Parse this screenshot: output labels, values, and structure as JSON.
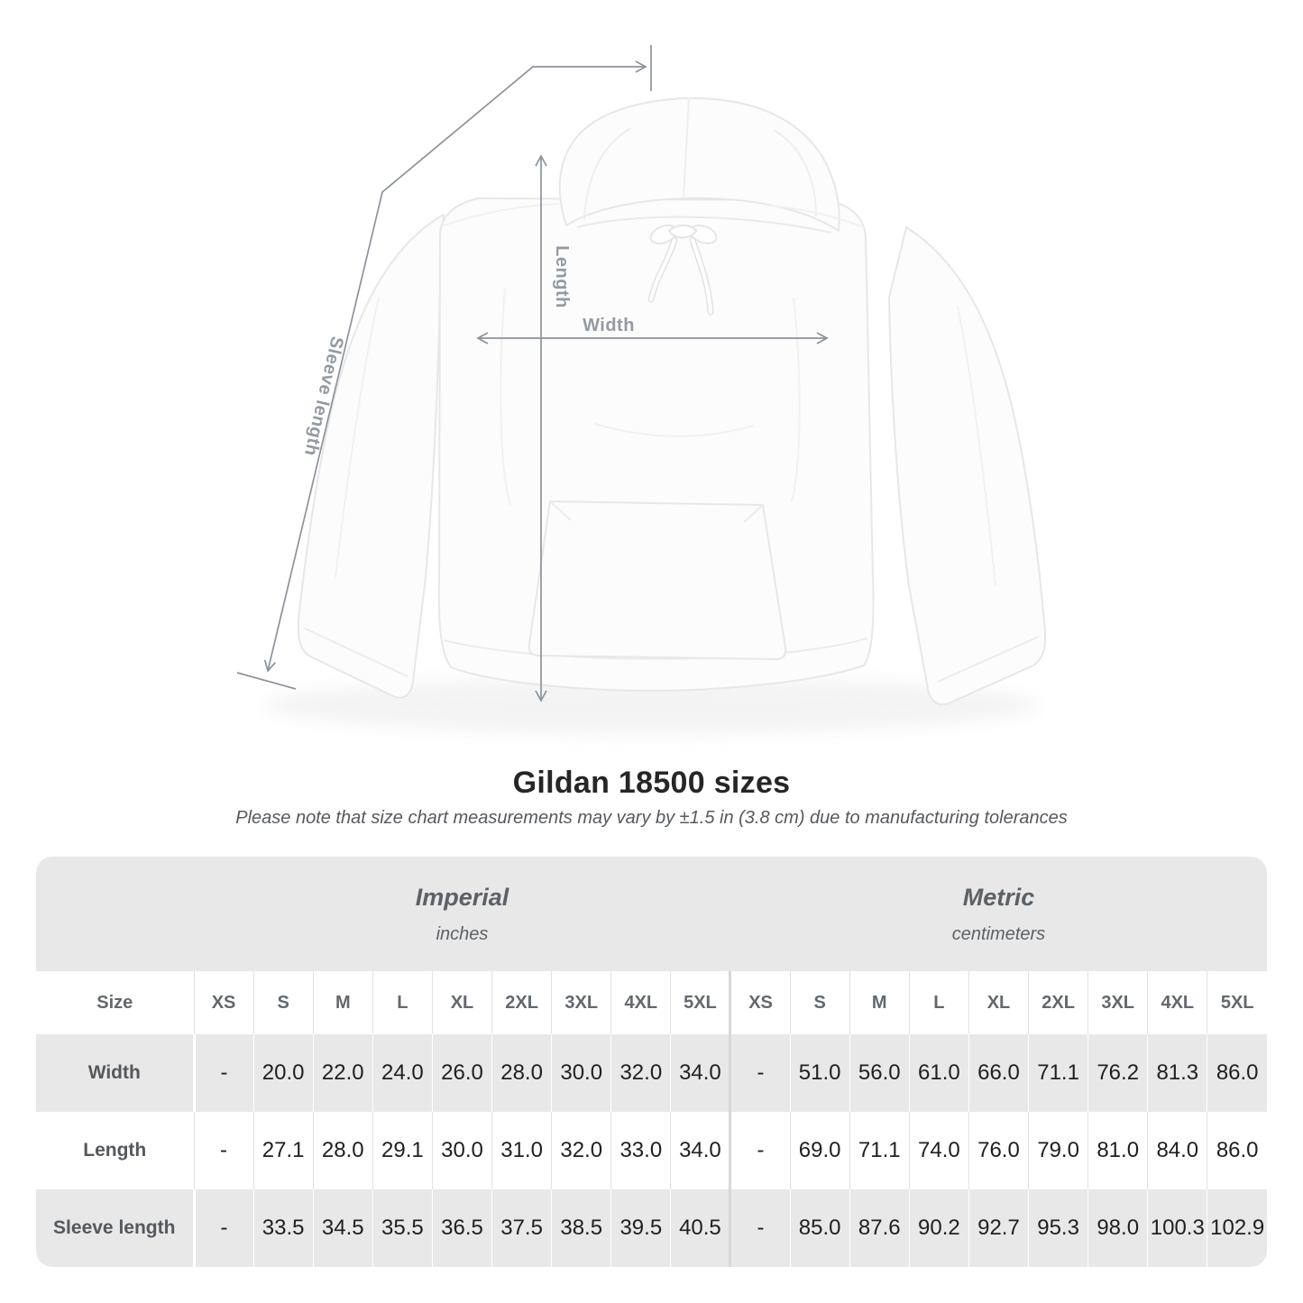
{
  "title": "Gildan 18500 sizes",
  "subtitle": "Please note that size chart measurements may vary by ±1.5 in (3.8 cm) due to manufacturing tolerances",
  "diagram": {
    "length_label": "Length",
    "width_label": "Width",
    "sleeve_label": "Sleeve length",
    "line_color": "#8d939a"
  },
  "table": {
    "size_header": "Size",
    "groups": [
      {
        "name": "Imperial",
        "unit": "inches"
      },
      {
        "name": "Metric",
        "unit": "centimeters"
      }
    ],
    "sizes": [
      "XS",
      "S",
      "M",
      "L",
      "XL",
      "2XL",
      "3XL",
      "4XL",
      "5XL"
    ],
    "rows": [
      {
        "label": "Width",
        "imperial": [
          "-",
          "20.0",
          "22.0",
          "24.0",
          "26.0",
          "28.0",
          "30.0",
          "32.0",
          "34.0"
        ],
        "metric": [
          "-",
          "51.0",
          "56.0",
          "61.0",
          "66.0",
          "71.1",
          "76.2",
          "81.3",
          "86.0"
        ]
      },
      {
        "label": "Length",
        "imperial": [
          "-",
          "27.1",
          "28.0",
          "29.1",
          "30.0",
          "31.0",
          "32.0",
          "33.0",
          "34.0"
        ],
        "metric": [
          "-",
          "69.0",
          "71.1",
          "74.0",
          "76.0",
          "79.0",
          "81.0",
          "84.0",
          "86.0"
        ]
      },
      {
        "label": "Sleeve length",
        "imperial": [
          "-",
          "33.5",
          "34.5",
          "35.5",
          "36.5",
          "37.5",
          "38.5",
          "39.5",
          "40.5"
        ],
        "metric": [
          "-",
          "85.0",
          "87.6",
          "90.2",
          "92.7",
          "95.3",
          "98.0",
          "100.3",
          "102.9"
        ]
      }
    ]
  },
  "chart_data": {
    "type": "table",
    "title": "Gildan 18500 sizes",
    "note": "Measurements may vary by ±1.5 in (3.8 cm)",
    "categories": [
      "XS",
      "S",
      "M",
      "L",
      "XL",
      "2XL",
      "3XL",
      "4XL",
      "5XL"
    ],
    "series": [
      {
        "name": "Width (inches)",
        "values": [
          null,
          20.0,
          22.0,
          24.0,
          26.0,
          28.0,
          30.0,
          32.0,
          34.0
        ]
      },
      {
        "name": "Length (inches)",
        "values": [
          null,
          27.1,
          28.0,
          29.1,
          30.0,
          31.0,
          32.0,
          33.0,
          34.0
        ]
      },
      {
        "name": "Sleeve length (inches)",
        "values": [
          null,
          33.5,
          34.5,
          35.5,
          36.5,
          37.5,
          38.5,
          39.5,
          40.5
        ]
      },
      {
        "name": "Width (cm)",
        "values": [
          null,
          51.0,
          56.0,
          61.0,
          66.0,
          71.1,
          76.2,
          81.3,
          86.0
        ]
      },
      {
        "name": "Length (cm)",
        "values": [
          null,
          69.0,
          71.1,
          74.0,
          76.0,
          79.0,
          81.0,
          84.0,
          86.0
        ]
      },
      {
        "name": "Sleeve length (cm)",
        "values": [
          null,
          85.0,
          87.6,
          90.2,
          92.7,
          95.3,
          98.0,
          100.3,
          102.9
        ]
      }
    ]
  }
}
